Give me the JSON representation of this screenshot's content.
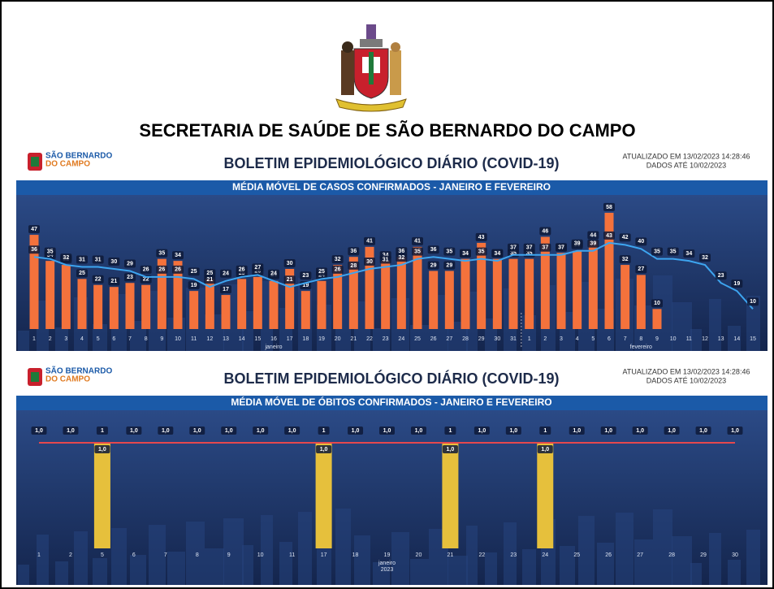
{
  "page": {
    "title": "SECRETARIA DE SAÚDE DE SÃO BERNARDO DO CAMPO"
  },
  "chart_data": [
    {
      "type": "bar",
      "brand": [
        "SÃO BERNARDO",
        "DO CAMPO"
      ],
      "bulletin": "BOLETIM EPIDEMIOLÓGICO DIÁRIO (COVID-19)",
      "updated": "ATUALIZADO EM 13/02/2023 14:28:46",
      "data_until": "DADOS ATÉ 10/02/2023",
      "title": "MÉDIA MÓVEL DE CASOS CONFIRMADOS - JANEIRO E FEVEREIRO",
      "categories": [
        "1",
        "2",
        "3",
        "4",
        "5",
        "6",
        "7",
        "8",
        "9",
        "10",
        "11",
        "12",
        "13",
        "14",
        "15",
        "16",
        "17",
        "18",
        "19",
        "20",
        "21",
        "22",
        "23",
        "24",
        "25",
        "26",
        "27",
        "28",
        "29",
        "30",
        "31",
        "1",
        "2",
        "3",
        "4",
        "5",
        "6",
        "7",
        "8",
        "9",
        "10",
        "11",
        "12",
        "13",
        "14",
        "15"
      ],
      "x_group_labels": [
        "janeiro",
        "fevereiro"
      ],
      "ylim": [
        0,
        60
      ],
      "series": [
        {
          "type": "bar",
          "color": "#f4723c",
          "values": [
            47,
            34,
            32,
            25,
            22,
            21,
            23,
            22,
            35,
            34,
            19,
            25,
            17,
            25,
            26,
            24,
            30,
            19,
            24,
            32,
            36,
            41,
            34,
            36,
            41,
            29,
            29,
            35,
            43,
            35,
            35,
            35,
            46,
            38,
            39,
            44,
            58,
            32,
            27,
            10,
            null,
            null,
            null,
            null,
            null,
            null
          ]
        },
        {
          "type": "line",
          "color": "#3da5f0",
          "values": [
            36,
            35,
            32,
            31,
            31,
            30,
            29,
            26,
            26,
            26,
            25,
            21,
            24,
            26,
            27,
            24,
            21,
            23,
            25,
            26,
            28,
            30,
            31,
            32,
            35,
            36,
            35,
            34,
            35,
            34,
            37,
            37,
            37,
            37,
            39,
            39,
            43,
            42,
            40,
            35,
            35,
            34,
            32,
            23,
            19,
            10
          ]
        }
      ]
    },
    {
      "type": "bar",
      "brand": [
        "SÃO BERNARDO",
        "DO CAMPO"
      ],
      "bulletin": "BOLETIM EPIDEMIOLÓGICO DIÁRIO (COVID-19)",
      "updated": "ATUALIZADO EM 13/02/2023 14:28:46",
      "data_until": "DADOS ATÉ 10/02/2023",
      "title": "MÉDIA MÓVEL DE ÓBITOS CONFIRMADOS - JANEIRO E FEVEREIRO",
      "categories": [
        "1",
        "2",
        "5",
        "6",
        "7",
        "8",
        "9",
        "10",
        "11",
        "17",
        "18",
        "19",
        "20",
        "21",
        "22",
        "23",
        "24",
        "25",
        "26",
        "27",
        "28",
        "29",
        "30"
      ],
      "x_group_labels": [
        "janeiro"
      ],
      "x_group_sublabel": "2023",
      "ylim": [
        0,
        1
      ],
      "series": [
        {
          "type": "bar",
          "color": "#e6c03c",
          "values": [
            null,
            null,
            1,
            null,
            null,
            null,
            null,
            null,
            null,
            1,
            null,
            null,
            null,
            1,
            null,
            null,
            1,
            null,
            null,
            null,
            null,
            null,
            null
          ],
          "value_labels": [
            null,
            null,
            "1,0",
            null,
            null,
            null,
            null,
            null,
            null,
            "1,0",
            null,
            null,
            null,
            "1,0",
            null,
            null,
            "1,0",
            null,
            null,
            null,
            null,
            null,
            null
          ]
        },
        {
          "type": "line",
          "color": "#e5484d",
          "values": [
            1,
            1,
            1,
            1,
            1,
            1,
            1,
            1,
            1,
            1,
            1,
            1,
            1,
            1,
            1,
            1,
            1,
            1,
            1,
            1,
            1,
            1,
            1
          ],
          "value_labels": [
            "1,0",
            "1,0",
            "1",
            "1,0",
            "1,0",
            "1,0",
            "1,0",
            "1,0",
            "1,0",
            "1",
            "1,0",
            "1,0",
            "1,0",
            "1",
            "1,0",
            "1,0",
            "1",
            "1,0",
            "1,0",
            "1,0",
            "1,0",
            "1,0",
            "1,0"
          ]
        }
      ]
    }
  ]
}
